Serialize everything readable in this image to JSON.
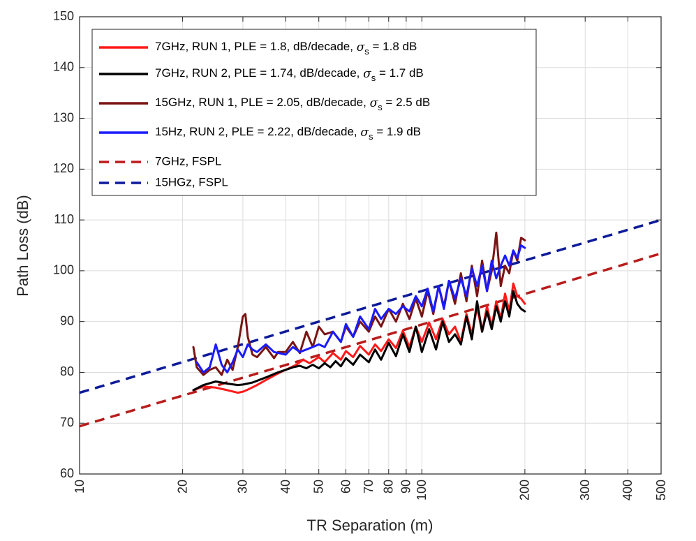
{
  "chart_data": {
    "type": "line",
    "title": "",
    "xlabel": "TR Separation (m)",
    "ylabel": "Path Loss (dB)",
    "xscale": "log",
    "xlim": [
      10,
      500
    ],
    "ylim": [
      60,
      150
    ],
    "grid": true,
    "legend_position": "top-left",
    "xticks": [
      10,
      20,
      30,
      40,
      50,
      60,
      70,
      80,
      90,
      100,
      200,
      300,
      400,
      500
    ],
    "xtick_labels": [
      "10",
      "20",
      "30",
      "40",
      "50",
      "60",
      "70",
      "80",
      "90",
      "100",
      "200",
      "300",
      "400",
      "500"
    ],
    "yticks": [
      60,
      70,
      80,
      90,
      100,
      110,
      120,
      130,
      140,
      150
    ],
    "ytick_labels": [
      "60",
      "70",
      "80",
      "90",
      "100",
      "110",
      "120",
      "130",
      "140",
      "150"
    ],
    "series": [
      {
        "name": "7GHz, RUN 1, PLE = 1.8, dB/decade",
        "legend_prefix": "7GHz, RUN 1, PLE = 1.8, dB/decade, ",
        "legend_suffix": " = 1.8 dB",
        "color": "#ff1a1a",
        "style": "solid",
        "x": [
          21.5,
          23,
          25,
          27,
          29,
          30,
          31,
          33,
          35,
          38,
          40,
          43,
          45,
          47,
          50,
          52,
          55,
          58,
          60,
          63,
          66,
          70,
          73,
          76,
          80,
          84,
          88,
          92,
          96,
          100,
          105,
          110,
          115,
          120,
          125,
          130,
          135,
          140,
          145,
          150,
          155,
          160,
          165,
          170,
          175,
          180,
          185,
          190,
          195,
          200
        ],
        "y": [
          76.5,
          77.2,
          77.0,
          76.5,
          76.0,
          76.2,
          76.6,
          77.5,
          78.5,
          79.8,
          80.5,
          81.5,
          82.5,
          81.8,
          83.0,
          82.0,
          83.8,
          82.5,
          84.2,
          83.0,
          85.2,
          83.5,
          85.5,
          84.2,
          86.5,
          84.8,
          88.2,
          85.0,
          89.0,
          86.0,
          89.8,
          86.5,
          90.5,
          87.5,
          89.0,
          86.0,
          91.5,
          87.5,
          92.8,
          88.0,
          93.0,
          89.0,
          94.0,
          90.5,
          95.5,
          92.0,
          97.5,
          95.0,
          94.5,
          93.5
        ]
      },
      {
        "name": "7GHz, RUN 2, PLE = 1.74, dB/decade",
        "legend_prefix": "7GHz, RUN 2, PLE = 1.74, dB/decade, ",
        "legend_suffix": " = 1.7 dB",
        "color": "#000000",
        "style": "solid",
        "x": [
          21.5,
          23,
          25,
          27,
          29,
          30,
          32,
          35,
          38,
          40,
          42,
          44,
          46,
          48,
          50,
          52,
          54,
          56,
          58,
          60,
          63,
          66,
          70,
          73,
          76,
          80,
          84,
          88,
          92,
          96,
          100,
          105,
          110,
          115,
          120,
          125,
          130,
          135,
          140,
          145,
          150,
          155,
          160,
          165,
          170,
          175,
          180,
          185,
          190,
          195,
          200
        ],
        "y": [
          76.5,
          77.5,
          78.2,
          77.8,
          77.5,
          77.6,
          78.0,
          79.0,
          80.0,
          80.5,
          81.0,
          81.3,
          80.8,
          81.5,
          80.8,
          81.8,
          81.0,
          82.2,
          81.2,
          82.8,
          81.5,
          83.5,
          82.0,
          84.5,
          82.5,
          85.8,
          83.2,
          87.5,
          84.0,
          89.0,
          84.0,
          88.5,
          84.5,
          90.0,
          86.0,
          87.5,
          85.5,
          91.0,
          86.5,
          94.0,
          88.0,
          92.0,
          88.5,
          93.0,
          90.0,
          94.0,
          91.0,
          96.0,
          93.5,
          92.5,
          92.0
        ]
      },
      {
        "name": "15GHz, RUN 1, PLE = 2.05, dB/decade",
        "legend_prefix": "15GHz, RUN 1, PLE = 2.05, dB/decade, ",
        "legend_suffix": " = 2.5 dB",
        "color": "#7a1414",
        "style": "solid",
        "x": [
          21.5,
          22,
          23,
          24,
          25,
          26,
          27,
          28,
          29,
          30,
          30.5,
          31,
          32,
          33,
          35,
          37,
          38,
          40,
          42,
          44,
          46,
          48,
          50,
          52,
          55,
          58,
          60,
          63,
          66,
          70,
          73,
          76,
          80,
          84,
          88,
          92,
          96,
          100,
          104,
          108,
          112,
          116,
          120,
          125,
          130,
          135,
          140,
          145,
          150,
          155,
          160,
          165,
          170,
          175,
          180,
          185,
          190,
          195,
          200
        ],
        "y": [
          85.0,
          81.0,
          79.5,
          80.5,
          81.0,
          79.5,
          82.5,
          80.5,
          85.0,
          91.0,
          91.5,
          87.0,
          83.5,
          83.0,
          85.0,
          82.8,
          84.0,
          84.0,
          86.0,
          83.8,
          88.0,
          85.0,
          89.0,
          87.5,
          88.0,
          86.0,
          89.0,
          87.0,
          90.0,
          88.0,
          91.0,
          89.0,
          92.5,
          90.0,
          93.5,
          90.5,
          94.5,
          91.0,
          96.0,
          91.5,
          97.0,
          93.0,
          98.0,
          93.5,
          99.5,
          94.0,
          101.0,
          95.0,
          102.0,
          96.0,
          100.0,
          107.5,
          97.0,
          101.0,
          99.5,
          104.0,
          102.0,
          106.5,
          106.0
        ]
      },
      {
        "name": "15Hz, RUN 2, PLE = 2.22, dB/decade",
        "legend_prefix": "15Hz, RUN 2, PLE = 2.22, dB/decade, ",
        "legend_suffix": " = 1.9 dB",
        "color": "#1a1aff",
        "style": "solid",
        "x": [
          22,
          23,
          24,
          25,
          26,
          27,
          28,
          29,
          30,
          31,
          32,
          33,
          35,
          37,
          40,
          42,
          44,
          46,
          48,
          50,
          52,
          55,
          58,
          60,
          63,
          66,
          70,
          73,
          76,
          80,
          84,
          88,
          92,
          96,
          100,
          104,
          108,
          112,
          116,
          120,
          125,
          130,
          135,
          140,
          145,
          150,
          155,
          160,
          165,
          170,
          175,
          180,
          185,
          190,
          195,
          200
        ],
        "y": [
          82.0,
          80.0,
          81.0,
          85.5,
          81.5,
          80.0,
          82.0,
          84.5,
          83.0,
          85.5,
          84.5,
          84.0,
          85.5,
          84.0,
          83.5,
          85.0,
          84.0,
          84.5,
          85.0,
          85.5,
          85.0,
          88.0,
          86.0,
          89.5,
          87.0,
          91.0,
          88.5,
          92.5,
          90.5,
          92.5,
          91.5,
          93.0,
          92.0,
          95.0,
          93.0,
          96.5,
          92.0,
          97.0,
          92.5,
          98.0,
          94.5,
          98.5,
          95.0,
          100.5,
          97.0,
          101.0,
          96.0,
          102.0,
          98.5,
          101.0,
          103.0,
          101.0,
          104.0,
          102.5,
          105.0,
          104.5
        ]
      },
      {
        "name": "7GHz, FSPL",
        "color": "#b81c1c",
        "style": "dashed",
        "x": [
          10,
          500
        ],
        "y": [
          69.4,
          103.4
        ]
      },
      {
        "name": "15HGz, FSPL",
        "color": "#0d1a99",
        "style": "dashed",
        "x": [
          10,
          500
        ],
        "y": [
          76.0,
          110.0
        ]
      }
    ]
  }
}
